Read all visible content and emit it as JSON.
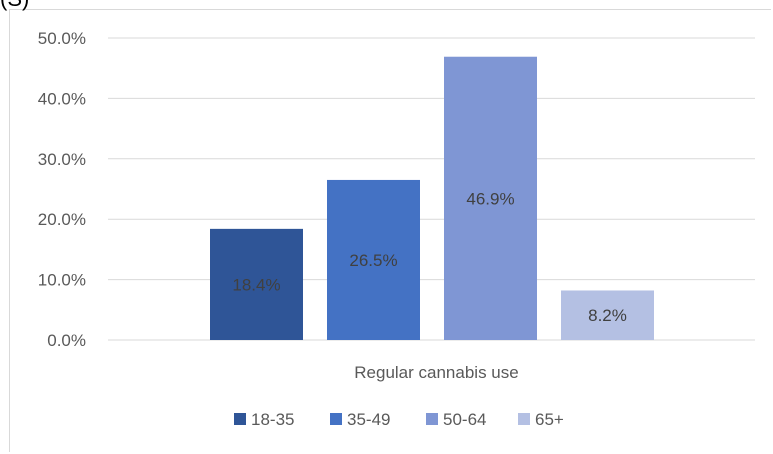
{
  "top_fragment": "(S)",
  "chart_data": {
    "type": "bar",
    "categories": [
      "Regular cannabis use"
    ],
    "series": [
      {
        "name": "18-35",
        "values": [
          18.4
        ],
        "label": "18.4%",
        "color": "#2f5597"
      },
      {
        "name": "35-49",
        "values": [
          26.5
        ],
        "label": "26.5%",
        "color": "#4472c4"
      },
      {
        "name": "50-64",
        "values": [
          46.9
        ],
        "label": "46.9%",
        "color": "#7f96d4"
      },
      {
        "name": "65+",
        "values": [
          8.2
        ],
        "label": "8.2%",
        "color": "#b4c0e3"
      }
    ],
    "y_ticks": [
      "0.0%",
      "10.0%",
      "20.0%",
      "30.0%",
      "40.0%",
      "50.0%"
    ],
    "ylim": [
      0,
      50
    ],
    "grid": true,
    "legend": "bottom"
  }
}
